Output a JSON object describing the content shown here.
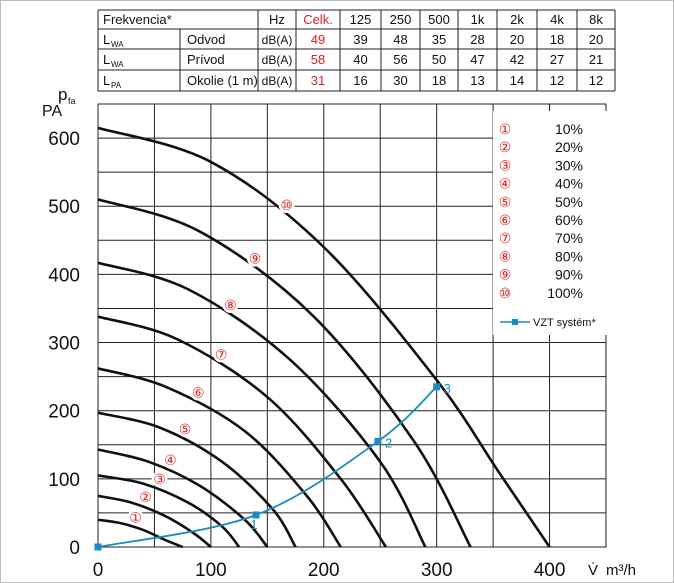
{
  "noise_table": {
    "header": [
      "Frekvencia*",
      "Hz",
      "Celk.",
      "125",
      "250",
      "500",
      "1k",
      "2k",
      "4k",
      "8k"
    ],
    "rows": [
      {
        "symbol": "L",
        "sub": "WA",
        "label": "Odvod",
        "unit": "dB(A)",
        "total": "49",
        "values": [
          "39",
          "48",
          "35",
          "28",
          "20",
          "18",
          "20"
        ]
      },
      {
        "symbol": "L",
        "sub": "WA",
        "label": "Prívod",
        "unit": "dB(A)",
        "total": "58",
        "values": [
          "40",
          "56",
          "50",
          "47",
          "42",
          "27",
          "21"
        ]
      },
      {
        "symbol": "L",
        "sub": "PA",
        "label": "Okolie (1 m)",
        "unit": "dB(A)",
        "total": "31",
        "values": [
          "16",
          "30",
          "18",
          "13",
          "14",
          "12",
          "12"
        ]
      }
    ]
  },
  "colors": {
    "highlight": "#e02020",
    "system_curve": "#1a8cbf",
    "curves": "#111111"
  },
  "chart_data": {
    "type": "line",
    "ylabel_main": "p",
    "ylabel_sub": "fa",
    "ylabel_unit": "PA",
    "xlabel_symbol": "V̇",
    "xlabel_unit": "m³/h",
    "xlim": [
      0,
      450
    ],
    "ylim": [
      0,
      650
    ],
    "x_ticks": [
      "0",
      "100",
      "200",
      "300",
      "400"
    ],
    "y_ticks": [
      "0",
      "100",
      "200",
      "300",
      "400",
      "500",
      "600"
    ],
    "grid": true,
    "legend_position": "top-right",
    "series": [
      {
        "name": "10%",
        "marker": "①",
        "x": [
          0,
          20,
          40,
          60,
          75
        ],
        "y": [
          40,
          35,
          25,
          10,
          0
        ]
      },
      {
        "name": "20%",
        "marker": "②",
        "x": [
          0,
          30,
          60,
          85,
          100
        ],
        "y": [
          75,
          65,
          45,
          20,
          0
        ]
      },
      {
        "name": "30%",
        "marker": "③",
        "x": [
          0,
          40,
          80,
          110,
          125
        ],
        "y": [
          105,
          93,
          65,
          30,
          0
        ]
      },
      {
        "name": "40%",
        "marker": "④",
        "x": [
          0,
          45,
          90,
          130,
          150
        ],
        "y": [
          143,
          125,
          90,
          40,
          0
        ]
      },
      {
        "name": "50%",
        "marker": "⑤",
        "x": [
          0,
          55,
          110,
          155,
          175
        ],
        "y": [
          197,
          175,
          125,
          55,
          0
        ]
      },
      {
        "name": "60%",
        "marker": "⑥",
        "x": [
          0,
          60,
          130,
          185,
          215
        ],
        "y": [
          262,
          235,
          170,
          75,
          0
        ]
      },
      {
        "name": "70%",
        "marker": "⑦",
        "x": [
          0,
          70,
          150,
          215,
          255
        ],
        "y": [
          338,
          305,
          220,
          100,
          0
        ]
      },
      {
        "name": "80%",
        "marker": "⑧",
        "x": [
          0,
          80,
          170,
          250,
          290
        ],
        "y": [
          417,
          378,
          275,
          125,
          0
        ]
      },
      {
        "name": "90%",
        "marker": "⑨",
        "x": [
          0,
          90,
          190,
          280,
          330
        ],
        "y": [
          510,
          463,
          340,
          155,
          0
        ]
      },
      {
        "name": "100%",
        "marker": "⑩",
        "x": [
          0,
          100,
          200,
          300,
          355,
          400
        ],
        "y": [
          615,
          565,
          440,
          245,
          110,
          0
        ]
      }
    ],
    "system_curve": {
      "name": "VZT systém*",
      "x": [
        0,
        140,
        248,
        300
      ],
      "y": [
        0,
        47,
        155,
        235
      ],
      "point_labels": [
        "",
        "1",
        "2",
        "3"
      ]
    }
  }
}
